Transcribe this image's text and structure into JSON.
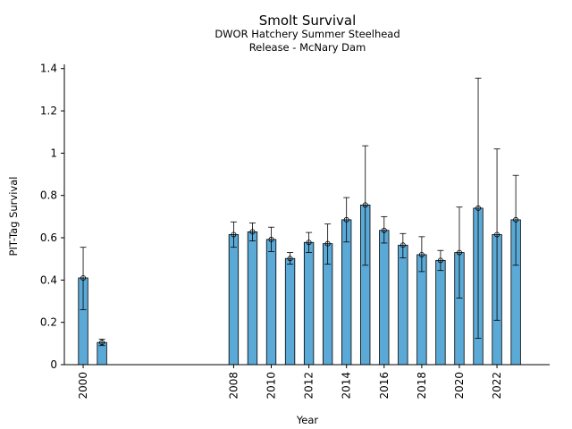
{
  "chart_data": {
    "type": "bar",
    "title": "Smolt Survival",
    "subtitle": [
      "DWOR Hatchery Summer Steelhead",
      "Release - McNary Dam"
    ],
    "xlabel": "Year",
    "ylabel": "PIT-Tag Survival",
    "xlim": [
      1999.0,
      2024.8
    ],
    "ylim": [
      0,
      1.42
    ],
    "xticks": [
      2000,
      2008,
      2010,
      2012,
      2014,
      2016,
      2018,
      2020,
      2022
    ],
    "yticks": [
      0,
      0.2,
      0.4,
      0.6,
      0.8,
      1,
      1.2,
      1.4
    ],
    "ytick_labels": [
      "0",
      "0.2",
      "0.4",
      "0.6",
      "0.8",
      "1",
      "1.2",
      "1.4"
    ],
    "bar_width": 0.5,
    "grid": false,
    "bar_color": "#5aa9d6",
    "edge_color": "#000000",
    "points": [
      {
        "x": 2000,
        "value": 0.41,
        "lower": 0.26,
        "upper": 0.555
      },
      {
        "x": 2001,
        "value": 0.105,
        "lower": 0.09,
        "upper": 0.12
      },
      {
        "x": 2008,
        "value": 0.615,
        "lower": 0.555,
        "upper": 0.675
      },
      {
        "x": 2009,
        "value": 0.628,
        "lower": 0.585,
        "upper": 0.67
      },
      {
        "x": 2010,
        "value": 0.592,
        "lower": 0.535,
        "upper": 0.65
      },
      {
        "x": 2011,
        "value": 0.502,
        "lower": 0.475,
        "upper": 0.53
      },
      {
        "x": 2012,
        "value": 0.578,
        "lower": 0.53,
        "upper": 0.625
      },
      {
        "x": 2013,
        "value": 0.572,
        "lower": 0.475,
        "upper": 0.665
      },
      {
        "x": 2014,
        "value": 0.685,
        "lower": 0.58,
        "upper": 0.79
      },
      {
        "x": 2015,
        "value": 0.755,
        "lower": 0.47,
        "upper": 1.035
      },
      {
        "x": 2016,
        "value": 0.635,
        "lower": 0.575,
        "upper": 0.7
      },
      {
        "x": 2017,
        "value": 0.565,
        "lower": 0.505,
        "upper": 0.62
      },
      {
        "x": 2018,
        "value": 0.52,
        "lower": 0.44,
        "upper": 0.605
      },
      {
        "x": 2019,
        "value": 0.493,
        "lower": 0.445,
        "upper": 0.54
      },
      {
        "x": 2020,
        "value": 0.53,
        "lower": 0.315,
        "upper": 0.745
      },
      {
        "x": 2021,
        "value": 0.74,
        "lower": 0.125,
        "upper": 1.355
      },
      {
        "x": 2022,
        "value": 0.615,
        "lower": 0.21,
        "upper": 1.02
      },
      {
        "x": 2023,
        "value": 0.685,
        "lower": 0.47,
        "upper": 0.895
      }
    ]
  }
}
